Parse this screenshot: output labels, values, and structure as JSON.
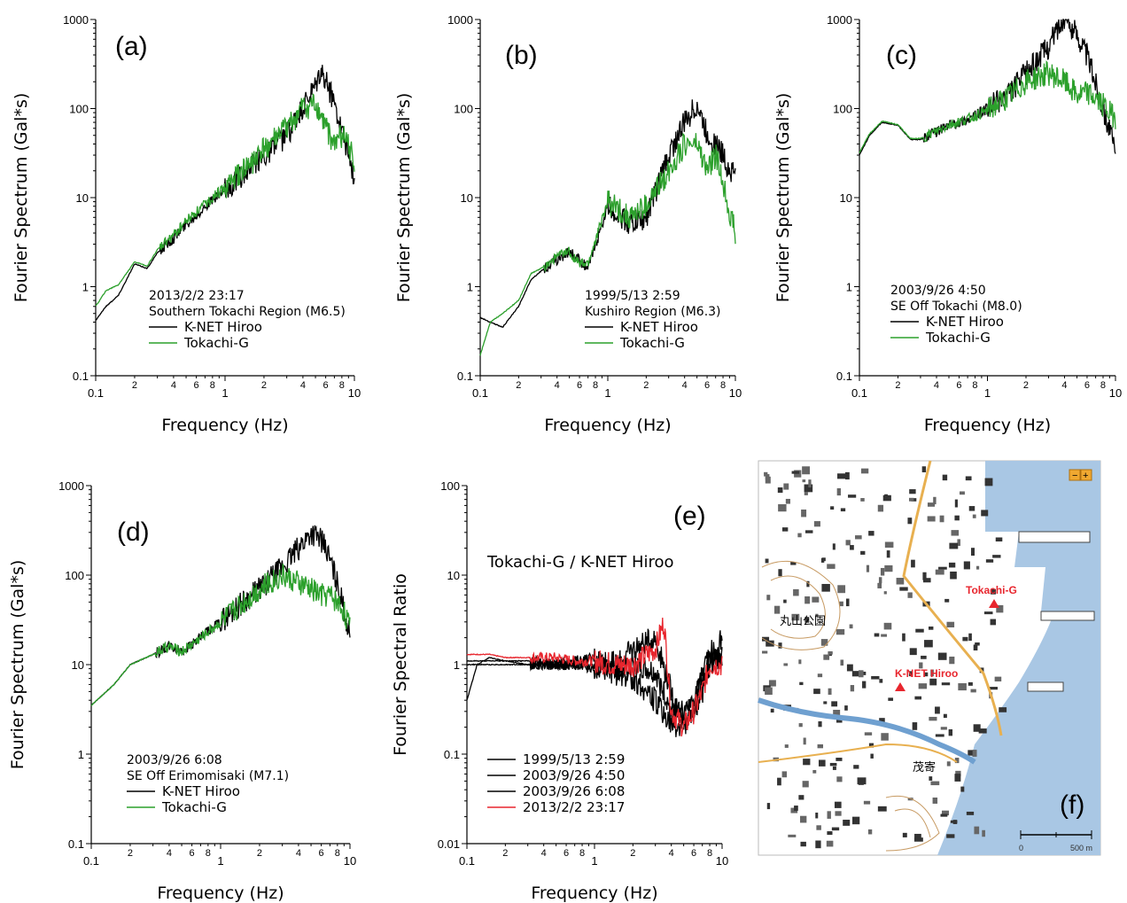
{
  "chart_data": [
    {
      "id": "a",
      "type": "line",
      "panel_label": "(a)",
      "xlabel": "Frequency (Hz)",
      "ylabel": "Fourier Spectrum (Gal*s)",
      "xscale": "log",
      "yscale": "log",
      "xlim": [
        0.1,
        10
      ],
      "ylim": [
        0.1,
        1000
      ],
      "x_ticks": [
        "0.1",
        "1",
        "10"
      ],
      "x_minor_ticks": [
        "2",
        "4",
        "6",
        "8",
        "2",
        "4",
        "6",
        "8"
      ],
      "y_ticks": [
        "0.1",
        "1",
        "10",
        "100",
        "1000"
      ],
      "annotation": [
        "2013/2/2 23:17",
        "Southern Tokachi Region (M6.5)"
      ],
      "series": [
        {
          "name": "K-NET Hiroo",
          "color": "#000000",
          "x": [
            0.1,
            0.12,
            0.15,
            0.2,
            0.25,
            0.3,
            0.4,
            0.5,
            0.7,
            1,
            1.5,
            2,
            3,
            4,
            5,
            5.5,
            6,
            7,
            8,
            9,
            10
          ],
          "y": [
            0.42,
            0.6,
            0.8,
            1.8,
            1.6,
            2.4,
            3.5,
            5,
            8,
            12,
            20,
            30,
            50,
            100,
            170,
            260,
            200,
            120,
            60,
            30,
            15
          ]
        },
        {
          "name": "Tokachi-G",
          "color": "#2ca02c",
          "x": [
            0.1,
            0.12,
            0.15,
            0.2,
            0.25,
            0.3,
            0.4,
            0.5,
            0.7,
            1,
            1.5,
            2,
            3,
            4,
            5,
            6,
            7,
            8,
            9,
            10
          ],
          "y": [
            0.6,
            0.9,
            1.05,
            1.9,
            1.7,
            2.6,
            3.8,
            5.5,
            8.5,
            13,
            22,
            35,
            60,
            100,
            110,
            60,
            40,
            50,
            40,
            25
          ]
        }
      ]
    },
    {
      "id": "b",
      "type": "line",
      "panel_label": "(b)",
      "xlabel": "Frequency (Hz)",
      "ylabel": "Fourier Spectrum (Gal*s)",
      "xscale": "log",
      "yscale": "log",
      "xlim": [
        0.1,
        10
      ],
      "ylim": [
        0.1,
        1000
      ],
      "x_ticks": [
        "0.1",
        "1",
        "10"
      ],
      "x_minor_ticks": [
        "2",
        "4",
        "6",
        "8",
        "2",
        "4",
        "6",
        "8"
      ],
      "y_ticks": [
        "0.1",
        "1",
        "10",
        "100",
        "1000"
      ],
      "annotation": [
        "1999/5/13 2:59",
        "Kushiro Region (M6.3)"
      ],
      "series": [
        {
          "name": "K-NET Hiroo",
          "color": "#000000",
          "x": [
            0.1,
            0.12,
            0.15,
            0.2,
            0.25,
            0.3,
            0.4,
            0.5,
            0.6,
            0.7,
            1,
            1.5,
            2,
            3,
            4,
            5,
            6,
            7,
            8,
            9,
            10
          ],
          "y": [
            0.45,
            0.4,
            0.35,
            0.6,
            1.2,
            1.5,
            2,
            2.5,
            2,
            1.6,
            8,
            5,
            6,
            30,
            70,
            110,
            50,
            40,
            30,
            20,
            20
          ]
        },
        {
          "name": "Tokachi-G",
          "color": "#2ca02c",
          "x": [
            0.1,
            0.12,
            0.15,
            0.2,
            0.25,
            0.3,
            0.4,
            0.5,
            0.6,
            0.7,
            1,
            1.5,
            2,
            3,
            4,
            5,
            6,
            7,
            8,
            9,
            10
          ],
          "y": [
            0.17,
            0.4,
            0.5,
            0.7,
            1.4,
            1.6,
            2.2,
            2.5,
            1.8,
            1.8,
            9,
            6,
            8,
            20,
            40,
            40,
            20,
            30,
            15,
            7,
            4
          ]
        }
      ]
    },
    {
      "id": "c",
      "type": "line",
      "panel_label": "(c)",
      "xlabel": "Frequency (Hz)",
      "ylabel": "Fourier Spectrum (Gal*s)",
      "xscale": "log",
      "yscale": "log",
      "xlim": [
        0.1,
        10
      ],
      "ylim": [
        0.1,
        1000
      ],
      "x_ticks": [
        "0.1",
        "1",
        "10"
      ],
      "x_minor_ticks": [
        "2",
        "4",
        "6",
        "8",
        "2",
        "4",
        "6",
        "8"
      ],
      "y_ticks": [
        "0.1",
        "1",
        "10",
        "100",
        "1000"
      ],
      "annotation": [
        "2003/9/26 4:50",
        "SE Off Tokachi (M8.0)"
      ],
      "series": [
        {
          "name": "K-NET Hiroo",
          "color": "#000000",
          "x": [
            0.1,
            0.12,
            0.15,
            0.2,
            0.25,
            0.3,
            0.4,
            0.5,
            0.7,
            1,
            1.5,
            2,
            3,
            3.5,
            4,
            5,
            6,
            7,
            8,
            9,
            10
          ],
          "y": [
            30,
            50,
            70,
            65,
            45,
            45,
            55,
            65,
            75,
            100,
            150,
            250,
            500,
            800,
            1000,
            700,
            400,
            200,
            100,
            60,
            30
          ]
        },
        {
          "name": "Tokachi-G",
          "color": "#2ca02c",
          "x": [
            0.1,
            0.12,
            0.15,
            0.2,
            0.25,
            0.3,
            0.4,
            0.5,
            0.7,
            1,
            1.5,
            2,
            3,
            4,
            5,
            6,
            7,
            8,
            9,
            10
          ],
          "y": [
            32,
            52,
            72,
            66,
            46,
            46,
            56,
            66,
            76,
            95,
            140,
            200,
            250,
            200,
            140,
            150,
            130,
            110,
            90,
            80
          ]
        }
      ]
    },
    {
      "id": "d",
      "type": "line",
      "panel_label": "(d)",
      "xlabel": "Frequency (Hz)",
      "ylabel": "Fourier Spectrum (Gal*s)",
      "xscale": "log",
      "yscale": "log",
      "xlim": [
        0.1,
        10
      ],
      "ylim": [
        0.1,
        1000
      ],
      "x_ticks": [
        "0.1",
        "1",
        "10"
      ],
      "x_minor_ticks": [
        "2",
        "4",
        "6",
        "8",
        "2",
        "4",
        "6",
        "8"
      ],
      "y_ticks": [
        "0.1",
        "1",
        "10",
        "100",
        "1000"
      ],
      "annotation": [
        "2003/9/26 6:08",
        "SE Off Erimomisaki (M7.1)"
      ],
      "series": [
        {
          "name": "K-NET Hiroo",
          "color": "#000000",
          "x": [
            0.1,
            0.15,
            0.2,
            0.3,
            0.4,
            0.5,
            0.7,
            1,
            1.5,
            2,
            3,
            4,
            5,
            6,
            7,
            8,
            9,
            10
          ],
          "y": [
            3.5,
            6,
            10,
            13,
            16,
            14,
            20,
            30,
            50,
            70,
            120,
            200,
            300,
            250,
            150,
            80,
            40,
            20
          ]
        },
        {
          "name": "Tokachi-G",
          "color": "#2ca02c",
          "x": [
            0.1,
            0.15,
            0.2,
            0.3,
            0.4,
            0.5,
            0.7,
            1,
            1.5,
            2,
            3,
            4,
            5,
            6,
            7,
            8,
            9,
            10
          ],
          "y": [
            3.5,
            6,
            10,
            13,
            16,
            14,
            20,
            30,
            50,
            70,
            100,
            80,
            70,
            60,
            60,
            50,
            40,
            25
          ]
        }
      ]
    },
    {
      "id": "e",
      "type": "line",
      "panel_label": "(e)",
      "title": "Tokachi-G / K-NET Hiroo",
      "xlabel": "Frequency (Hz)",
      "ylabel": "Fourier Spectral Ratio",
      "xscale": "log",
      "yscale": "log",
      "xlim": [
        0.1,
        10
      ],
      "ylim": [
        0.01,
        100
      ],
      "x_ticks": [
        "0.1",
        "1",
        "10"
      ],
      "x_minor_ticks": [
        "2",
        "4",
        "6",
        "8",
        "2",
        "4",
        "6",
        "8"
      ],
      "y_ticks": [
        "0.01",
        "0.1",
        "1",
        "10",
        "100"
      ],
      "series": [
        {
          "name": "1999/5/13 2:59",
          "color": "#000000",
          "x": [
            0.1,
            0.12,
            0.15,
            0.2,
            0.3,
            0.5,
            0.7,
            1,
            1.5,
            2,
            3,
            4,
            5,
            6,
            7,
            8,
            10
          ],
          "y": [
            0.4,
            1,
            1.2,
            1.1,
            1,
            1,
            1.1,
            1.2,
            1,
            1.5,
            2,
            0.5,
            0.2,
            0.3,
            0.8,
            1.5,
            1
          ]
        },
        {
          "name": "2003/9/26 4:50",
          "color": "#000000",
          "x": [
            0.1,
            0.15,
            0.2,
            0.3,
            0.5,
            0.7,
            1,
            1.5,
            2,
            3,
            4,
            5,
            6,
            7,
            8,
            10
          ],
          "y": [
            1,
            1,
            1,
            1,
            1,
            1,
            0.9,
            0.8,
            0.7,
            0.4,
            0.2,
            0.2,
            0.4,
            0.7,
            1,
            1.2
          ]
        },
        {
          "name": "2003/9/26 6:08",
          "color": "#000000",
          "x": [
            0.1,
            0.15,
            0.2,
            0.3,
            0.5,
            0.7,
            1,
            1.5,
            2,
            3,
            4,
            5,
            6,
            7,
            8,
            10
          ],
          "y": [
            1.1,
            1.1,
            1.1,
            1.1,
            1,
            1,
            1,
            0.9,
            1,
            0.8,
            0.3,
            0.3,
            0.3,
            0.5,
            1,
            2
          ]
        },
        {
          "name": "2013/2/2 23:17",
          "color": "#e8262e",
          "x": [
            0.1,
            0.15,
            0.2,
            0.3,
            0.5,
            0.7,
            1,
            1.5,
            2,
            3,
            3.5,
            4,
            5,
            6,
            7,
            8,
            10
          ],
          "y": [
            1.3,
            1.3,
            1.2,
            1.2,
            1.2,
            1.1,
            1.1,
            1,
            1,
            1.5,
            3,
            0.3,
            0.2,
            0.3,
            0.5,
            1,
            1
          ]
        }
      ]
    }
  ],
  "map": {
    "panel_label": "(f)",
    "markers": [
      {
        "label": "Tokachi-G",
        "color": "#e8262e"
      },
      {
        "label": "K-NET Hiroo",
        "color": "#e8262e"
      }
    ],
    "kanji_labels": [
      "丸山公園",
      "茂寄"
    ],
    "scale_labels": [
      "0",
      "500 m"
    ],
    "zoom_labels": [
      "−",
      "+"
    ],
    "colors": {
      "sea": "#a9c7e4",
      "land": "#ffffff",
      "road": "#e8b050",
      "river": "#6fa0d0"
    }
  }
}
